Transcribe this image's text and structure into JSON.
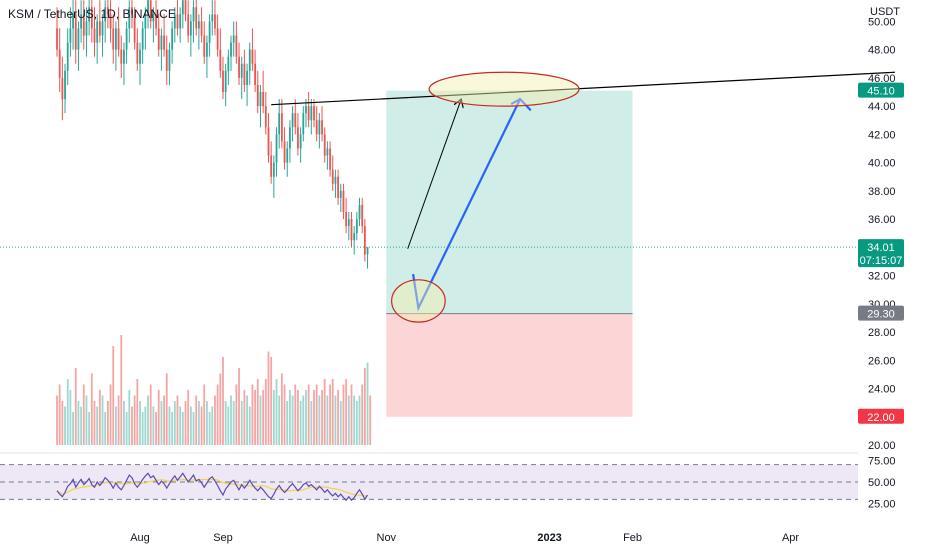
{
  "header": {
    "title": "KSM / TetherUS, 1D, BINANCE",
    "axis_unit": "USDT"
  },
  "colors": {
    "up": "#26a69a",
    "down": "#ef5350",
    "profit_zone": "#d1ede8",
    "loss_zone": "#fcd6d6",
    "projection_arrow": "#2962ff",
    "trendline": "#000000",
    "ellipse": "#c62828",
    "ellipse_fill": "#f3f0b0",
    "rsi_band": "#ede7f6",
    "rsi_line": "#5b4ab6",
    "rsi_ma": "#f2d44b"
  },
  "chart_data": {
    "type": "candlestick",
    "symbol": "KSM / TetherUS",
    "interval": "1D",
    "exchange": "BINANCE",
    "price_axis": {
      "unit": "USDT",
      "ylim": [
        20,
        51
      ],
      "ticks": [
        "20.00",
        "22.00",
        "24.00",
        "26.00",
        "28.00",
        "30.00",
        "32.00",
        "34.00",
        "36.00",
        "38.00",
        "40.00",
        "42.00",
        "44.00",
        "46.00",
        "48.00",
        "50.00"
      ]
    },
    "time_axis": {
      "labels": [
        {
          "label": "Aug",
          "date": "2022-08-01"
        },
        {
          "label": "Sep",
          "date": "2022-09-01"
        },
        {
          "label": "Nov",
          "date": "2022-11-01"
        },
        {
          "label": "2023",
          "date": "2023-01-01"
        },
        {
          "label": "Feb",
          "date": "2023-02-01"
        },
        {
          "label": "Apr",
          "date": "2023-04-01"
        }
      ]
    },
    "price_markers": [
      {
        "name": "target",
        "value": 45.1,
        "label": "45.10",
        "color": "#089981"
      },
      {
        "name": "last-price",
        "value": 34.01,
        "label": "34.01",
        "countdown": "07:15:07",
        "color": "#089981"
      },
      {
        "name": "entry",
        "value": 29.3,
        "label": "29.30",
        "color": "#787b86"
      },
      {
        "name": "stop",
        "value": 22.0,
        "label": "22.00",
        "color": "#f23645"
      }
    ],
    "position": {
      "type": "long",
      "entry": 29.3,
      "target": 45.1,
      "stop": 22.0,
      "start": "2022-11-01",
      "end": "2023-02-01"
    },
    "drawings": [
      {
        "type": "trendline",
        "points": [
          {
            "date": "2022-09-19",
            "price": 44.1
          },
          {
            "date": "2023-05-10",
            "price": 46.4
          }
        ]
      },
      {
        "type": "arrow",
        "color": "black",
        "points": [
          {
            "date": "2022-11-09",
            "price": 33.9
          },
          {
            "date": "2022-11-29",
            "price": 44.5
          }
        ]
      },
      {
        "type": "arrow",
        "color": "blue",
        "points": [
          {
            "date": "2022-11-11",
            "price": 32.1
          },
          {
            "date": "2022-11-13",
            "price": 29.7
          },
          {
            "date": "2022-12-21",
            "price": 44.5
          },
          {
            "date": "2022-12-25",
            "price": 43.7
          }
        ]
      },
      {
        "type": "ellipse",
        "center": {
          "date": "2022-12-15",
          "price": 45.2
        },
        "rx_days": 28,
        "ry_price": 1.2
      },
      {
        "type": "ellipse",
        "center": {
          "date": "2022-11-13",
          "price": 30.2
        },
        "rx_days": 10,
        "ry_price": 1.5
      }
    ],
    "rsi": {
      "ylim": [
        20,
        80
      ],
      "ticks": [
        "25.00",
        "50.00",
        "75.00"
      ],
      "upper": 70,
      "lower": 30
    },
    "ohlc": {
      "start": "2022-07-01",
      "candles": [
        [
          49.5,
          51.0,
          47.5,
          48.0
        ],
        [
          48.0,
          49.5,
          45.0,
          46.0
        ],
        [
          46.0,
          47.5,
          43.0,
          44.5
        ],
        [
          44.5,
          47.0,
          43.5,
          46.5
        ],
        [
          46.5,
          49.5,
          45.5,
          48.5
        ],
        [
          48.5,
          51.0,
          47.5,
          49.5
        ],
        [
          49.5,
          52.0,
          48.0,
          50.5
        ],
        [
          50.5,
          51.5,
          47.0,
          48.0
        ],
        [
          48.0,
          50.0,
          46.5,
          49.5
        ],
        [
          49.5,
          51.5,
          48.5,
          50.5
        ],
        [
          50.5,
          51.5,
          48.0,
          49.0
        ],
        [
          49.0,
          51.0,
          47.5,
          50.0
        ],
        [
          50.0,
          52.0,
          49.0,
          51.0
        ],
        [
          51.0,
          52.0,
          48.5,
          49.5
        ],
        [
          49.5,
          51.0,
          47.5,
          48.5
        ],
        [
          48.5,
          50.5,
          47.0,
          50.0
        ],
        [
          50.0,
          51.5,
          48.5,
          49.0
        ],
        [
          49.0,
          50.5,
          47.5,
          50.0
        ],
        [
          50.0,
          51.5,
          48.5,
          51.0
        ],
        [
          51.0,
          52.0,
          49.5,
          50.5
        ],
        [
          50.5,
          51.5,
          48.5,
          49.5
        ],
        [
          49.5,
          50.5,
          47.0,
          48.0
        ],
        [
          48.0,
          50.0,
          46.5,
          49.5
        ],
        [
          49.5,
          51.0,
          47.5,
          48.0
        ],
        [
          48.0,
          49.0,
          46.0,
          47.0
        ],
        [
          47.0,
          48.5,
          45.5,
          48.0
        ],
        [
          48.0,
          50.0,
          47.0,
          49.5
        ],
        [
          49.5,
          51.5,
          48.5,
          51.0
        ],
        [
          51.0,
          52.0,
          49.5,
          50.5
        ],
        [
          50.5,
          51.0,
          48.0,
          48.5
        ],
        [
          48.5,
          49.5,
          46.5,
          47.0
        ],
        [
          47.0,
          48.5,
          45.5,
          48.0
        ],
        [
          48.0,
          50.0,
          47.0,
          49.5
        ],
        [
          49.5,
          51.0,
          48.0,
          50.5
        ],
        [
          50.5,
          52.0,
          49.5,
          51.5
        ],
        [
          51.5,
          52.0,
          49.5,
          50.0
        ],
        [
          50.0,
          51.0,
          48.5,
          50.5
        ],
        [
          50.5,
          51.5,
          49.0,
          49.5
        ],
        [
          49.5,
          50.5,
          47.5,
          48.0
        ],
        [
          48.0,
          49.5,
          46.5,
          49.0
        ],
        [
          49.0,
          50.5,
          47.5,
          48.0
        ],
        [
          48.0,
          49.0,
          45.5,
          46.5
        ],
        [
          46.5,
          48.5,
          45.5,
          48.0
        ],
        [
          48.0,
          50.0,
          47.0,
          49.5
        ],
        [
          49.5,
          51.0,
          48.5,
          50.5
        ],
        [
          50.5,
          51.5,
          49.0,
          49.5
        ],
        [
          49.5,
          51.0,
          48.5,
          50.5
        ],
        [
          50.5,
          52.0,
          49.5,
          51.5
        ],
        [
          51.5,
          52.0,
          50.0,
          50.5
        ],
        [
          50.5,
          51.5,
          48.5,
          49.0
        ],
        [
          49.0,
          50.5,
          47.5,
          50.0
        ],
        [
          50.0,
          51.5,
          48.5,
          51.0
        ],
        [
          51.0,
          52.0,
          49.0,
          49.5
        ],
        [
          49.5,
          50.5,
          48.0,
          50.0
        ],
        [
          50.0,
          51.0,
          48.5,
          49.0
        ],
        [
          49.0,
          50.0,
          47.0,
          47.5
        ],
        [
          47.5,
          49.0,
          46.0,
          48.5
        ],
        [
          48.5,
          50.5,
          47.5,
          50.0
        ],
        [
          50.0,
          51.5,
          49.0,
          50.5
        ],
        [
          50.5,
          51.5,
          49.0,
          49.5
        ],
        [
          49.5,
          50.5,
          47.5,
          48.0
        ],
        [
          48.0,
          49.5,
          46.0,
          46.5
        ],
        [
          46.5,
          47.5,
          44.5,
          45.0
        ],
        [
          45.0,
          47.0,
          44.0,
          46.5
        ],
        [
          46.5,
          48.0,
          45.5,
          47.5
        ],
        [
          47.5,
          49.0,
          46.5,
          48.5
        ],
        [
          48.5,
          50.0,
          47.5,
          49.0
        ],
        [
          49.0,
          50.0,
          47.0,
          47.5
        ],
        [
          47.5,
          48.5,
          45.5,
          46.0
        ],
        [
          46.0,
          47.5,
          44.5,
          47.0
        ],
        [
          47.0,
          48.0,
          45.0,
          45.5
        ],
        [
          45.5,
          47.0,
          44.0,
          46.5
        ],
        [
          46.5,
          48.5,
          45.5,
          48.0
        ],
        [
          48.0,
          49.5,
          46.5,
          47.0
        ],
        [
          47.0,
          48.0,
          45.0,
          45.5
        ],
        [
          45.5,
          46.5,
          43.5,
          44.0
        ],
        [
          44.0,
          45.5,
          42.5,
          45.0
        ],
        [
          45.0,
          46.5,
          43.5,
          44.0
        ],
        [
          44.0,
          45.0,
          42.0,
          42.5
        ],
        [
          42.5,
          43.5,
          40.0,
          40.5
        ],
        [
          40.5,
          41.5,
          38.5,
          39.0
        ],
        [
          39.0,
          40.5,
          37.5,
          40.0
        ],
        [
          40.0,
          42.5,
          39.0,
          42.0
        ],
        [
          42.0,
          44.5,
          41.0,
          43.5
        ],
        [
          43.5,
          44.5,
          41.0,
          41.5
        ],
        [
          41.5,
          42.5,
          39.5,
          40.0
        ],
        [
          40.0,
          41.5,
          39.0,
          41.0
        ],
        [
          41.0,
          43.0,
          40.0,
          42.5
        ],
        [
          42.5,
          44.0,
          41.5,
          43.5
        ],
        [
          43.5,
          44.5,
          42.0,
          42.5
        ],
        [
          42.5,
          43.5,
          40.5,
          41.0
        ],
        [
          41.0,
          42.5,
          40.0,
          42.0
        ],
        [
          42.0,
          44.0,
          41.5,
          43.5
        ],
        [
          43.5,
          44.5,
          42.5,
          44.0
        ],
        [
          44.0,
          45.0,
          42.5,
          43.0
        ],
        [
          43.0,
          44.5,
          42.0,
          44.0
        ],
        [
          44.0,
          44.5,
          42.5,
          43.0
        ],
        [
          43.0,
          44.0,
          41.5,
          42.0
        ],
        [
          42.0,
          43.5,
          41.0,
          43.0
        ],
        [
          43.0,
          44.0,
          41.5,
          42.0
        ],
        [
          42.0,
          42.5,
          40.0,
          40.5
        ],
        [
          40.5,
          41.5,
          39.5,
          41.0
        ],
        [
          41.0,
          41.5,
          39.0,
          39.5
        ],
        [
          39.5,
          40.5,
          38.0,
          38.5
        ],
        [
          38.5,
          39.5,
          37.5,
          39.0
        ],
        [
          39.0,
          39.5,
          37.0,
          37.5
        ],
        [
          37.5,
          38.5,
          36.5,
          38.0
        ],
        [
          38.0,
          38.5,
          36.0,
          36.5
        ],
        [
          36.5,
          37.5,
          35.0,
          35.5
        ],
        [
          35.5,
          36.5,
          34.5,
          36.0
        ],
        [
          36.0,
          36.5,
          34.0,
          34.5
        ],
        [
          34.5,
          35.5,
          33.5,
          35.0
        ],
        [
          35.0,
          36.5,
          34.5,
          36.0
        ],
        [
          36.0,
          37.5,
          35.5,
          37.0
        ],
        [
          37.0,
          37.5,
          35.0,
          35.5
        ],
        [
          35.5,
          36.0,
          33.0,
          33.5
        ],
        [
          33.5,
          34.0,
          32.5,
          34.01
        ]
      ]
    },
    "volume": [
      0.45,
      0.55,
      0.4,
      0.35,
      0.6,
      0.5,
      0.3,
      0.7,
      0.4,
      0.35,
      0.55,
      0.45,
      0.3,
      0.65,
      0.4,
      0.35,
      0.5,
      0.45,
      0.3,
      0.4,
      0.55,
      0.9,
      0.35,
      0.45,
      1.0,
      0.4,
      0.3,
      0.5,
      0.35,
      0.45,
      0.6,
      0.4,
      0.3,
      0.35,
      0.45,
      0.55,
      0.35,
      0.3,
      0.5,
      0.4,
      0.45,
      0.65,
      0.35,
      0.3,
      0.4,
      0.45,
      0.35,
      0.3,
      0.4,
      0.5,
      0.35,
      0.3,
      0.45,
      0.4,
      0.35,
      0.55,
      0.4,
      0.3,
      0.35,
      0.45,
      0.55,
      0.65,
      0.8,
      0.4,
      0.35,
      0.45,
      0.4,
      0.55,
      0.7,
      0.4,
      0.5,
      0.45,
      0.35,
      0.55,
      0.5,
      0.6,
      0.45,
      0.5,
      0.6,
      0.85,
      0.8,
      0.5,
      0.6,
      0.45,
      0.65,
      0.55,
      0.4,
      0.5,
      0.45,
      0.55,
      0.5,
      0.4,
      0.45,
      0.5,
      0.55,
      0.4,
      0.5,
      0.55,
      0.45,
      0.5,
      0.6,
      0.45,
      0.55,
      0.6,
      0.45,
      0.5,
      0.4,
      0.55,
      0.6,
      0.45,
      0.55,
      0.45,
      0.4,
      0.45,
      0.55,
      0.7,
      0.75,
      0.45
    ],
    "rsi_values": [
      40,
      36,
      33,
      38,
      45,
      48,
      53,
      44,
      49,
      53,
      47,
      50,
      54,
      47,
      44,
      50,
      46,
      50,
      55,
      52,
      48,
      43,
      49,
      44,
      41,
      46,
      52,
      58,
      55,
      48,
      44,
      48,
      53,
      57,
      60,
      55,
      57,
      52,
      47,
      51,
      48,
      43,
      48,
      53,
      57,
      52,
      56,
      60,
      55,
      50,
      54,
      58,
      51,
      53,
      49,
      44,
      49,
      54,
      56,
      51,
      46,
      40,
      35,
      42,
      46,
      50,
      52,
      46,
      41,
      47,
      43,
      47,
      52,
      47,
      43,
      40,
      44,
      41,
      37,
      33,
      31,
      36,
      42,
      46,
      41,
      38,
      41,
      45,
      48,
      44,
      40,
      43,
      47,
      49,
      45,
      47,
      44,
      41,
      45,
      42,
      38,
      41,
      37,
      34,
      37,
      33,
      36,
      32,
      29,
      33,
      29,
      32,
      37,
      41,
      36,
      30,
      35
    ]
  }
}
